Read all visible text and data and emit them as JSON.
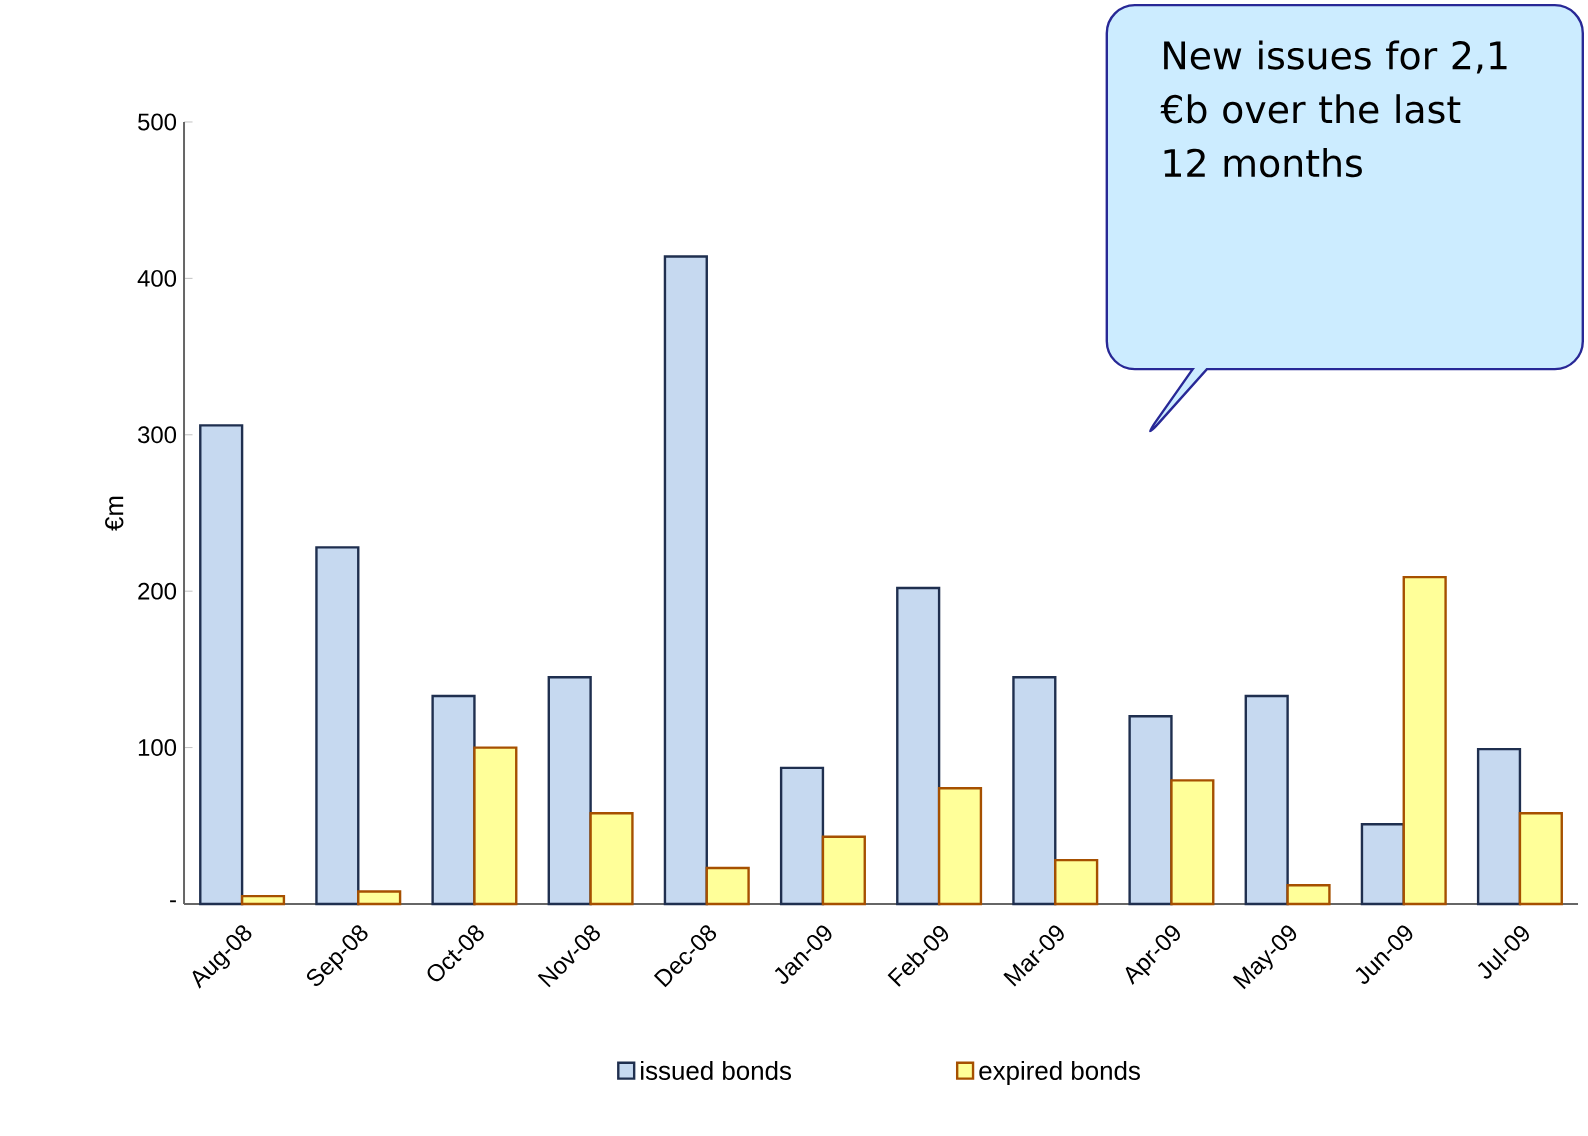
{
  "chart_data": {
    "type": "bar",
    "ylabel": "€m",
    "categories": [
      "Aug-08",
      "Sep-08",
      "Oct-08",
      "Nov-08",
      "Dec-08",
      "Jan-09",
      "Feb-09",
      "Mar-09",
      "Apr-09",
      "May-09",
      "Jun-09",
      "Jul-09"
    ],
    "series": [
      {
        "name": "issued bonds",
        "color": "#c6d9f0",
        "values": [
          306,
          228,
          133,
          145,
          414,
          87,
          202,
          145,
          120,
          133,
          51,
          99
        ]
      },
      {
        "name": "expired bonds",
        "color": "#ffff99",
        "values": [
          5,
          8,
          100,
          58,
          23,
          43,
          74,
          28,
          79,
          12,
          209,
          58
        ]
      }
    ],
    "ylim": [
      0,
      500
    ],
    "yticks": [
      {
        "value": 0,
        "label": "-"
      },
      100,
      200,
      300,
      400,
      500
    ],
    "legend": "bottom",
    "grid": false,
    "annotations": [
      "New issues for 2,1 €b over the last 12 months"
    ]
  }
}
